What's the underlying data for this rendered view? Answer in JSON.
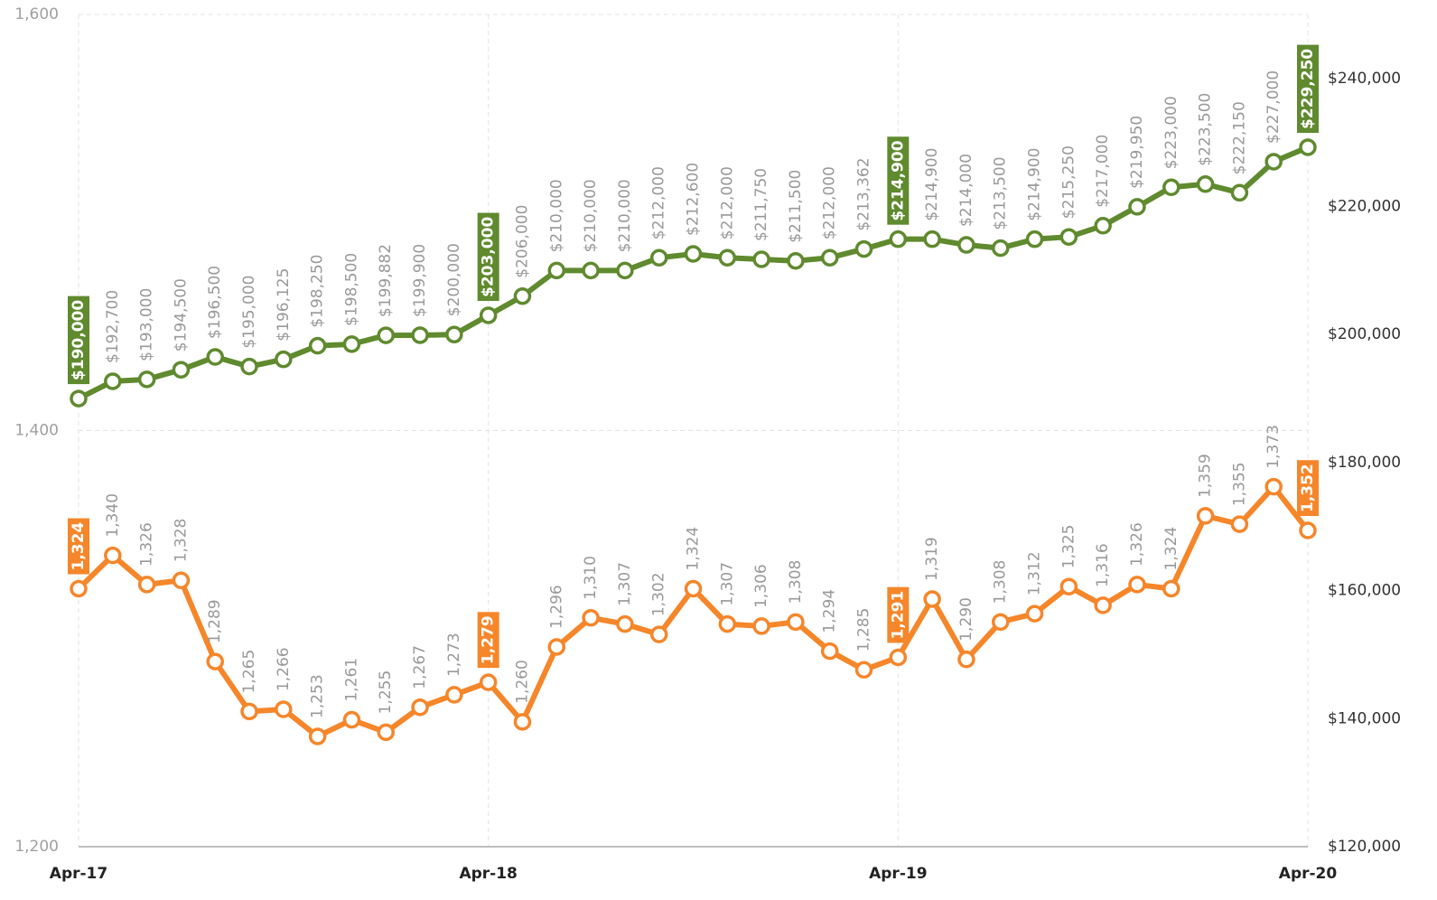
{
  "chart_data": {
    "type": "line",
    "categories": [
      "Apr-17",
      null,
      null,
      null,
      null,
      null,
      null,
      null,
      null,
      null,
      null,
      null,
      "Apr-18",
      null,
      null,
      null,
      null,
      null,
      null,
      null,
      null,
      null,
      null,
      null,
      "Apr-19",
      null,
      null,
      null,
      null,
      null,
      null,
      null,
      null,
      null,
      null,
      null,
      "Apr-20"
    ],
    "ylim": [
      1200,
      1600
    ],
    "yticks": [
      {
        "value": 1200,
        "label": "1,200"
      },
      {
        "value": 1400,
        "label": "1,400"
      },
      {
        "value": 1600,
        "label": "1,600"
      }
    ],
    "y2lim": [
      120000,
      250000
    ],
    "y2ticks": [
      {
        "value": 120000,
        "label": "$120,000"
      },
      {
        "value": 140000,
        "label": "$140,000"
      },
      {
        "value": 160000,
        "label": "$160,000"
      },
      {
        "value": 180000,
        "label": "$180,000"
      },
      {
        "value": 200000,
        "label": "$200,000"
      },
      {
        "value": 220000,
        "label": "$220,000"
      },
      {
        "value": 240000,
        "label": "$240,000"
      }
    ],
    "grid": true,
    "highlighted": [
      0,
      12,
      24,
      36
    ],
    "series": [
      {
        "color": "#f5862a",
        "axis": "y",
        "values": [
          1324,
          1340,
          1326,
          1328,
          1289,
          1265,
          1266,
          1253,
          1261,
          1255,
          1267,
          1273,
          1279,
          1260,
          1296,
          1310,
          1307,
          1302,
          1324,
          1307,
          1306,
          1308,
          1294,
          1285,
          1291,
          1319,
          1290,
          1308,
          1312,
          1325,
          1316,
          1326,
          1324,
          1359,
          1355,
          1373,
          1352
        ],
        "value_labels": [
          "1,324",
          "1,340",
          "1,326",
          "1,328",
          "1,289",
          "1,265",
          "1,266",
          "1,253",
          "1,261",
          "1,255",
          "1,267",
          "1,273",
          "1,279",
          "1,260",
          "1,296",
          "1,310",
          "1,307",
          "1,302",
          "1,324",
          "1,307",
          "1,306",
          "1,308",
          "1,294",
          "1,285",
          "1,291",
          "1,319",
          "1,290",
          "1,308",
          "1,312",
          "1,325",
          "1,316",
          "1,326",
          "1,324",
          "1,359",
          "1,355",
          "1,373",
          "1,352"
        ]
      },
      {
        "color": "#5f8a2e",
        "axis": "y2",
        "values": [
          190000,
          192700,
          193000,
          194500,
          196500,
          195000,
          196125,
          198250,
          198500,
          199882,
          199900,
          200000,
          203000,
          206000,
          210000,
          210000,
          210000,
          212000,
          212600,
          212000,
          211750,
          211500,
          212000,
          213362,
          214900,
          214900,
          214000,
          213500,
          214900,
          215250,
          217000,
          219950,
          223000,
          223500,
          222150,
          227000,
          229250
        ],
        "value_labels": [
          "$190,000",
          "$192,700",
          "$193,000",
          "$194,500",
          "$196,500",
          "$195,000",
          "$196,125",
          "$198,250",
          "$198,500",
          "$199,882",
          "$199,900",
          "$200,000",
          "$203,000",
          "$206,000",
          "$210,000",
          "$210,000",
          "$210,000",
          "$212,000",
          "$212,600",
          "$212,000",
          "$211,750",
          "$211,500",
          "$212,000",
          "$213,362",
          "$214,900",
          "$214,900",
          "$214,000",
          "$213,500",
          "$214,900",
          "$215,250",
          "$217,000",
          "$219,950",
          "$223,000",
          "$223,500",
          "$222,150",
          "$227,000",
          "$229,250"
        ]
      }
    ]
  }
}
